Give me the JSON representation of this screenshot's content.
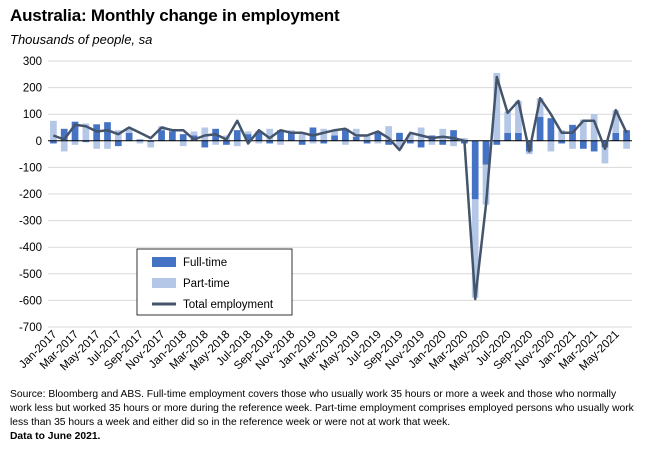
{
  "title": "Australia: Monthly change in employment",
  "subtitle": "Thousands of people, sa",
  "note": {
    "source": "Source: Bloomberg and ABS.  Full-time employment covers those who usually work 35 hours or more a week and those who normally work less but worked 35 hours or  more during the reference week.  Part-time employment comprises employed persons who usually work less than 35 hours a week and either did so in the reference week or were not at work that week.",
    "as_of": "Data to June 2021."
  },
  "colors": {
    "full_time": "#4472c4",
    "part_time": "#b4c7e7",
    "total": "#44546a",
    "grid": "#d9d9d9"
  },
  "chart_data": {
    "type": "bar",
    "ylim": [
      -700,
      300
    ],
    "yticks": [
      -700,
      -600,
      -500,
      -400,
      -300,
      -200,
      -100,
      0,
      100,
      200,
      300
    ],
    "xtick_labels": [
      "Jan-2017",
      "Mar-2017",
      "May-2017",
      "Jul-2017",
      "Sep-2017",
      "Nov-2017",
      "Jan-2018",
      "Mar-2018",
      "May-2018",
      "Jul-2018",
      "Sep-2018",
      "Nov-2018",
      "Jan-2019",
      "Mar-2019",
      "May-2019",
      "Jul-2019",
      "Sep-2019",
      "Nov-2019",
      "Jan-2020",
      "Mar-2020",
      "May-2020",
      "Jul-2020",
      "Sep-2020",
      "Nov-2020",
      "Jan-2021",
      "Mar-2021",
      "May-2021"
    ],
    "legend": {
      "position": "lower-left",
      "entries": [
        "Full-time",
        "Part-time",
        "Total employment"
      ]
    },
    "categories": [
      "Jan-2017",
      "Feb-2017",
      "Mar-2017",
      "Apr-2017",
      "May-2017",
      "Jun-2017",
      "Jul-2017",
      "Aug-2017",
      "Sep-2017",
      "Oct-2017",
      "Nov-2017",
      "Dec-2017",
      "Jan-2018",
      "Feb-2018",
      "Mar-2018",
      "Apr-2018",
      "May-2018",
      "Jun-2018",
      "Jul-2018",
      "Aug-2018",
      "Sep-2018",
      "Oct-2018",
      "Nov-2018",
      "Dec-2018",
      "Jan-2019",
      "Feb-2019",
      "Mar-2019",
      "Apr-2019",
      "May-2019",
      "Jun-2019",
      "Jul-2019",
      "Aug-2019",
      "Sep-2019",
      "Oct-2019",
      "Nov-2019",
      "Dec-2019",
      "Jan-2020",
      "Feb-2020",
      "Mar-2020",
      "Apr-2020",
      "May-2020",
      "Jun-2020",
      "Jul-2020",
      "Aug-2020",
      "Sep-2020",
      "Oct-2020",
      "Nov-2020",
      "Dec-2020",
      "Jan-2021",
      "Feb-2021",
      "Mar-2021",
      "Apr-2021",
      "May-2021",
      "Jun-2021"
    ],
    "series": [
      {
        "name": "Full-time",
        "kind": "bar",
        "values": [
          -10,
          45,
          72,
          -5,
          62,
          70,
          -20,
          30,
          5,
          -5,
          40,
          35,
          25,
          20,
          -25,
          45,
          -15,
          40,
          25,
          35,
          -10,
          40,
          30,
          -15,
          50,
          -10,
          20,
          45,
          15,
          -10,
          35,
          -15,
          30,
          -10,
          -25,
          20,
          -15,
          40,
          -10,
          -220,
          -90,
          -15,
          30,
          30,
          -40,
          90,
          85,
          -10,
          60,
          -30,
          -40,
          -25,
          30,
          40
        ],
        "pos": [
          0,
          45,
          72,
          0,
          62,
          70,
          0,
          30,
          5,
          0,
          40,
          35,
          25,
          20,
          0,
          45,
          0,
          40,
          25,
          35,
          0,
          40,
          30,
          0,
          50,
          0,
          20,
          45,
          15,
          0,
          35,
          0,
          30,
          0,
          0,
          20,
          0,
          40,
          0,
          0,
          0,
          0,
          30,
          30,
          0,
          90,
          85,
          0,
          60,
          0,
          0,
          0,
          30,
          40
        ],
        "neg": [
          -10,
          0,
          0,
          -5,
          0,
          0,
          -20,
          0,
          0,
          -5,
          0,
          0,
          0,
          0,
          -25,
          0,
          -15,
          0,
          0,
          0,
          -10,
          0,
          0,
          -15,
          0,
          -10,
          0,
          0,
          0,
          -10,
          0,
          -15,
          0,
          -10,
          -25,
          0,
          -15,
          0,
          -10,
          -220,
          -90,
          -15,
          0,
          0,
          -40,
          0,
          0,
          -10,
          0,
          -30,
          -40,
          -25,
          0,
          0
        ]
      },
      {
        "name": "Part-time",
        "kind": "bar",
        "values": [
          75,
          -40,
          -15,
          65,
          -30,
          -30,
          40,
          20,
          -10,
          -20,
          15,
          10,
          -20,
          15,
          50,
          -15,
          20,
          -20,
          10,
          -10,
          45,
          -15,
          10,
          25,
          -10,
          45,
          20,
          -15,
          30,
          20,
          -10,
          55,
          -30,
          25,
          50,
          -15,
          45,
          -20,
          10,
          -370,
          -150,
          255,
          80,
          120,
          -10,
          70,
          -40,
          40,
          -30,
          80,
          100,
          -60,
          85,
          -30
        ],
        "pos": [
          75,
          0,
          0,
          65,
          0,
          0,
          40,
          20,
          0,
          0,
          15,
          10,
          0,
          15,
          50,
          0,
          20,
          0,
          10,
          0,
          45,
          0,
          10,
          25,
          0,
          45,
          20,
          0,
          30,
          20,
          0,
          55,
          0,
          25,
          50,
          0,
          45,
          0,
          10,
          0,
          0,
          255,
          80,
          120,
          0,
          70,
          0,
          40,
          0,
          80,
          100,
          0,
          85,
          0
        ],
        "neg": [
          0,
          -40,
          -15,
          0,
          -30,
          -30,
          0,
          0,
          -10,
          -20,
          0,
          0,
          -20,
          0,
          0,
          -15,
          0,
          -20,
          0,
          -10,
          0,
          -15,
          0,
          0,
          -10,
          0,
          0,
          -15,
          0,
          0,
          -10,
          0,
          -30,
          0,
          0,
          -15,
          0,
          -20,
          0,
          -370,
          -150,
          0,
          0,
          0,
          -10,
          0,
          -40,
          0,
          -30,
          0,
          0,
          -60,
          0,
          -30
        ]
      },
      {
        "name": "Total employment",
        "kind": "line",
        "values": [
          20,
          5,
          60,
          55,
          35,
          40,
          25,
          50,
          30,
          10,
          50,
          40,
          40,
          5,
          20,
          25,
          5,
          75,
          -10,
          40,
          10,
          40,
          30,
          30,
          20,
          30,
          40,
          45,
          20,
          20,
          35,
          10,
          -35,
          30,
          20,
          10,
          15,
          10,
          0,
          -595,
          -240,
          240,
          105,
          150,
          -40,
          160,
          100,
          30,
          30,
          75,
          75,
          -30,
          115,
          30
        ]
      }
    ]
  }
}
